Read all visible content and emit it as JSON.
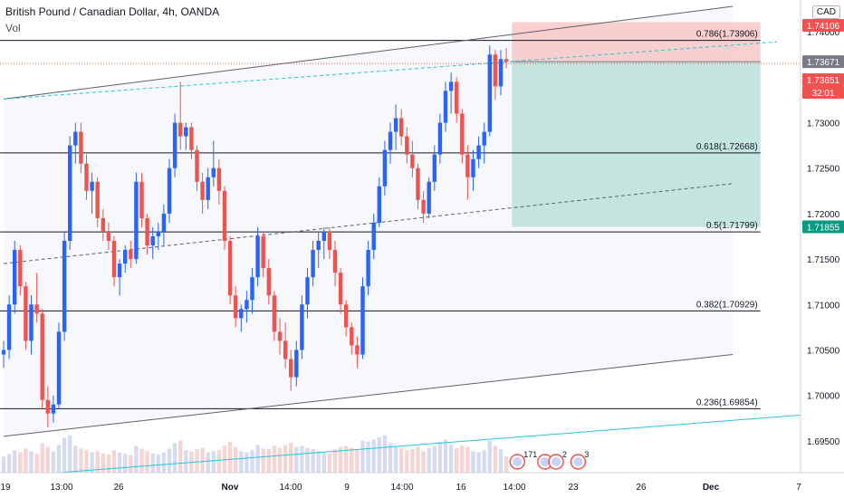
{
  "header": {
    "title": "British Pound / Canadian Dollar, 4h, OANDA",
    "volume_label": "Vol",
    "currency": "CAD"
  },
  "colors": {
    "up": "#2962ff",
    "down": "#ef5350",
    "volume_up": "#d6dcef",
    "volume_down": "#f5d4d4",
    "stop_zone": "#f6c4c4",
    "target_zone": "#b7dfd9",
    "cyan_line": "#26c6da",
    "fib_line": "#131722",
    "channel": "#5d606b"
  },
  "chart_data": {
    "type": "candlestick",
    "symbol": "British Pound / Canadian Dollar",
    "interval": "4h",
    "broker": "OANDA",
    "x_ticks": [
      "19",
      "13:00",
      "26",
      "Nov",
      "14:00",
      "9",
      "14:00",
      "16",
      "14:00",
      "23",
      "26",
      "Dec",
      "7"
    ],
    "y_ticks": [
      "1.74000",
      "1.73500",
      "1.73000",
      "1.72500",
      "1.72000",
      "1.71500",
      "1.71000",
      "1.70500",
      "1.70000",
      "1.69500"
    ],
    "ylim": [
      1.6915,
      1.7435
    ],
    "price_labels": [
      {
        "text": "1.74106",
        "value": 1.74106,
        "bg": "#ef5350",
        "fg": "#ffffff"
      },
      {
        "text": "1.73671",
        "value": 1.73671,
        "bg": "#787b86",
        "fg": "#ffffff"
      },
      {
        "text": "1.73651",
        "value": 1.73651,
        "bg": "#ef5350",
        "fg": "#ffffff"
      },
      {
        "text": "32:01",
        "value": 1.7345,
        "bg": "#ef5350",
        "fg": "#ffffff"
      },
      {
        "text": "1.71855",
        "value": 1.71855,
        "bg": "#089981",
        "fg": "#ffffff"
      }
    ],
    "fib_levels": [
      {
        "label": "0.786(1.73906)",
        "value": 1.73906
      },
      {
        "label": "0.618(1.72668)",
        "value": 1.72668
      },
      {
        "label": "0.5(1.71799)",
        "value": 1.71799
      },
      {
        "label": "0.382(1.70929)",
        "value": 1.70929
      },
      {
        "label": "0.236(1.69854)",
        "value": 1.69854
      }
    ],
    "position": {
      "entry": 1.73671,
      "stop": 1.74106,
      "target": 1.71855,
      "start_bar": 92,
      "end_bar": 137
    },
    "channel": {
      "upper": [
        [
          0,
          1.7326
        ],
        [
          132,
          1.7428
        ]
      ],
      "lower": [
        [
          0,
          1.6955
        ],
        [
          132,
          1.7045
        ]
      ],
      "mid": [
        [
          0,
          1.7145
        ],
        [
          132,
          1.7233
        ]
      ],
      "cyan_dashed": [
        [
          0,
          1.7326
        ],
        [
          140,
          1.7389
        ]
      ],
      "cyan_solid": [
        [
          10,
          1.6915
        ],
        [
          150,
          1.6981
        ]
      ]
    },
    "events": [
      {
        "bar": 93,
        "text": "171"
      },
      {
        "bar": 98,
        "text": ""
      },
      {
        "bar": 100,
        "text": "2"
      },
      {
        "bar": 104,
        "text": "3"
      }
    ],
    "candles": [
      [
        1.7045,
        1.706,
        1.703,
        1.705
      ],
      [
        1.705,
        1.711,
        1.704,
        1.71
      ],
      [
        1.71,
        1.717,
        1.709,
        1.716
      ],
      [
        1.716,
        1.7165,
        1.711,
        1.712
      ],
      [
        1.712,
        1.7125,
        1.705,
        1.706
      ],
      [
        1.706,
        1.711,
        1.7045,
        1.71
      ],
      [
        1.71,
        1.7135,
        1.708,
        1.709
      ],
      [
        1.709,
        1.7095,
        1.6985,
        1.6995
      ],
      [
        1.6995,
        1.701,
        1.6965,
        1.698
      ],
      [
        1.698,
        1.7,
        1.697,
        1.699
      ],
      [
        1.699,
        1.708,
        1.6985,
        1.707
      ],
      [
        1.707,
        1.718,
        1.706,
        1.717
      ],
      [
        1.717,
        1.7285,
        1.716,
        1.7275
      ],
      [
        1.7275,
        1.73,
        1.7255,
        1.729
      ],
      [
        1.729,
        1.73,
        1.7245,
        1.7255
      ],
      [
        1.7255,
        1.7265,
        1.7215,
        1.7225
      ],
      [
        1.7225,
        1.7245,
        1.72,
        1.7235
      ],
      [
        1.7235,
        1.724,
        1.7185,
        1.7195
      ],
      [
        1.7195,
        1.7205,
        1.717,
        1.718
      ],
      [
        1.718,
        1.719,
        1.716,
        1.717
      ],
      [
        1.717,
        1.7175,
        1.712,
        1.713
      ],
      [
        1.713,
        1.715,
        1.711,
        1.7145
      ],
      [
        1.7145,
        1.7165,
        1.7135,
        1.716
      ],
      [
        1.716,
        1.717,
        1.714,
        1.715
      ],
      [
        1.715,
        1.7245,
        1.7145,
        1.7235
      ],
      [
        1.7235,
        1.7245,
        1.7185,
        1.7195
      ],
      [
        1.7195,
        1.72,
        1.7155,
        1.7165
      ],
      [
        1.7165,
        1.7185,
        1.715,
        1.7175
      ],
      [
        1.7175,
        1.719,
        1.716,
        1.718
      ],
      [
        1.718,
        1.721,
        1.7165,
        1.72
      ],
      [
        1.72,
        1.726,
        1.719,
        1.725
      ],
      [
        1.725,
        1.731,
        1.724,
        1.73
      ],
      [
        1.73,
        1.7345,
        1.727,
        1.7285
      ],
      [
        1.7285,
        1.73,
        1.727,
        1.7295
      ],
      [
        1.7295,
        1.73,
        1.726,
        1.727
      ],
      [
        1.727,
        1.7275,
        1.7225,
        1.7235
      ],
      [
        1.7235,
        1.7245,
        1.72,
        1.7215
      ],
      [
        1.7215,
        1.725,
        1.7205,
        1.724
      ],
      [
        1.724,
        1.728,
        1.723,
        1.725
      ],
      [
        1.725,
        1.726,
        1.721,
        1.7225
      ],
      [
        1.7225,
        1.723,
        1.716,
        1.717
      ],
      [
        1.717,
        1.7175,
        1.71,
        1.711
      ],
      [
        1.711,
        1.712,
        1.7075,
        1.7085
      ],
      [
        1.7085,
        1.71,
        1.707,
        1.7095
      ],
      [
        1.7095,
        1.7115,
        1.708,
        1.7105
      ],
      [
        1.7105,
        1.714,
        1.709,
        1.713
      ],
      [
        1.713,
        1.7185,
        1.712,
        1.7175
      ],
      [
        1.7175,
        1.718,
        1.713,
        1.714
      ],
      [
        1.714,
        1.715,
        1.71,
        1.711
      ],
      [
        1.711,
        1.7115,
        1.706,
        1.707
      ],
      [
        1.707,
        1.7085,
        1.7045,
        1.706
      ],
      [
        1.706,
        1.708,
        1.703,
        1.704
      ],
      [
        1.704,
        1.705,
        1.7005,
        1.702
      ],
      [
        1.702,
        1.706,
        1.701,
        1.705
      ],
      [
        1.705,
        1.711,
        1.704,
        1.71
      ],
      [
        1.71,
        1.714,
        1.7085,
        1.713
      ],
      [
        1.713,
        1.717,
        1.712,
        1.716
      ],
      [
        1.716,
        1.718,
        1.714,
        1.717
      ],
      [
        1.717,
        1.7185,
        1.715,
        1.718
      ],
      [
        1.718,
        1.7185,
        1.715,
        1.716
      ],
      [
        1.716,
        1.717,
        1.712,
        1.7135
      ],
      [
        1.7135,
        1.714,
        1.709,
        1.71
      ],
      [
        1.71,
        1.7105,
        1.7065,
        1.7075
      ],
      [
        1.7075,
        1.708,
        1.7045,
        1.7055
      ],
      [
        1.7055,
        1.7065,
        1.703,
        1.7045
      ],
      [
        1.7045,
        1.713,
        1.704,
        1.712
      ],
      [
        1.712,
        1.717,
        1.711,
        1.716
      ],
      [
        1.716,
        1.72,
        1.715,
        1.719
      ],
      [
        1.719,
        1.724,
        1.7185,
        1.723
      ],
      [
        1.723,
        1.728,
        1.722,
        1.727
      ],
      [
        1.727,
        1.73,
        1.7255,
        1.729
      ],
      [
        1.729,
        1.732,
        1.727,
        1.7305
      ],
      [
        1.7305,
        1.7315,
        1.7275,
        1.7285
      ],
      [
        1.7285,
        1.7295,
        1.7255,
        1.7265
      ],
      [
        1.7265,
        1.728,
        1.724,
        1.725
      ],
      [
        1.725,
        1.7255,
        1.7205,
        1.7215
      ],
      [
        1.7215,
        1.7225,
        1.719,
        1.72
      ],
      [
        1.72,
        1.724,
        1.7195,
        1.7235
      ],
      [
        1.7235,
        1.7275,
        1.7225,
        1.7265
      ],
      [
        1.7265,
        1.731,
        1.7255,
        1.73
      ],
      [
        1.73,
        1.7345,
        1.729,
        1.7335
      ],
      [
        1.7335,
        1.7355,
        1.731,
        1.7345
      ],
      [
        1.7345,
        1.735,
        1.73,
        1.731
      ],
      [
        1.731,
        1.7315,
        1.7255,
        1.7265
      ],
      [
        1.7265,
        1.7275,
        1.7215,
        1.724
      ],
      [
        1.724,
        1.727,
        1.7225,
        1.726
      ],
      [
        1.726,
        1.7285,
        1.725,
        1.7275
      ],
      [
        1.7275,
        1.73,
        1.7255,
        1.729
      ],
      [
        1.729,
        1.7385,
        1.7285,
        1.7375
      ],
      [
        1.7375,
        1.738,
        1.7325,
        1.734
      ],
      [
        1.734,
        1.738,
        1.733,
        1.737
      ],
      [
        1.737,
        1.7382,
        1.736,
        1.7367
      ]
    ],
    "volumes": [
      30,
      35,
      42,
      38,
      45,
      40,
      36,
      55,
      48,
      40,
      52,
      65,
      70,
      50,
      45,
      42,
      38,
      40,
      36,
      34,
      42,
      38,
      35,
      33,
      50,
      45,
      40,
      36,
      34,
      38,
      45,
      55,
      60,
      42,
      40,
      44,
      46,
      38,
      40,
      42,
      50,
      58,
      48,
      40,
      38,
      42,
      52,
      45,
      44,
      50,
      46,
      52,
      56,
      48,
      50,
      46,
      44,
      40,
      38,
      36,
      44,
      48,
      50,
      46,
      44,
      60,
      58,
      62,
      66,
      70,
      55,
      50,
      46,
      42,
      44,
      48,
      40,
      46,
      50,
      58,
      62,
      52,
      46,
      50,
      48,
      40,
      38,
      42,
      60,
      50,
      44,
      30
    ]
  }
}
